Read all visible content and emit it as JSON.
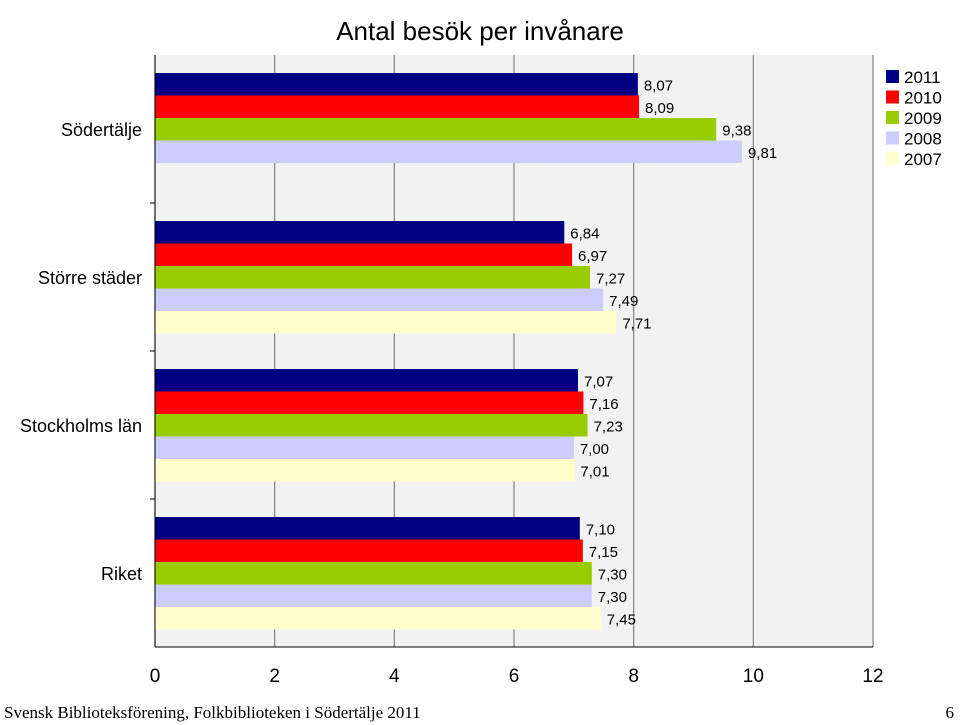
{
  "chart_data": {
    "type": "bar",
    "orientation": "horizontal",
    "title": "Antal besök per invånare",
    "categories": [
      "Södertälje",
      "Större städer",
      "Stockholms län",
      "Riket"
    ],
    "series": [
      {
        "name": "2011",
        "color": "#000080",
        "values": [
          8.07,
          6.84,
          7.07,
          7.1
        ],
        "labels": [
          "8,07",
          "6,84",
          "7,07",
          "7,10"
        ]
      },
      {
        "name": "2010",
        "color": "#FF0000",
        "values": [
          8.09,
          6.97,
          7.16,
          7.15
        ],
        "labels": [
          "8,09",
          "6,97",
          "7,16",
          "7,15"
        ]
      },
      {
        "name": "2009",
        "color": "#99CC00",
        "values": [
          9.38,
          7.27,
          7.23,
          7.3
        ],
        "labels": [
          "9,38",
          "7,27",
          "7,23",
          "7,30"
        ]
      },
      {
        "name": "2008",
        "color": "#CCCCFF",
        "values": [
          9.81,
          7.49,
          7.0,
          7.3
        ],
        "labels": [
          "9,81",
          "7,49",
          "7,00",
          "7,30"
        ]
      },
      {
        "name": "2007",
        "color": "#FFFFCC",
        "values": [
          null,
          7.71,
          7.01,
          7.45
        ],
        "labels": [
          "",
          "7,71",
          "7,01",
          "7,45"
        ]
      }
    ],
    "xlim": [
      0,
      12
    ],
    "xticks": [
      "0",
      "2",
      "4",
      "6",
      "8",
      "10",
      "12"
    ],
    "grid": true,
    "legend_position": "top-right",
    "plot_background": "#F2F2F2"
  },
  "footer": {
    "source": "Svensk Biblioteksförening, Folkbiblioteken i Södertälje 2011",
    "page_number": "6"
  }
}
